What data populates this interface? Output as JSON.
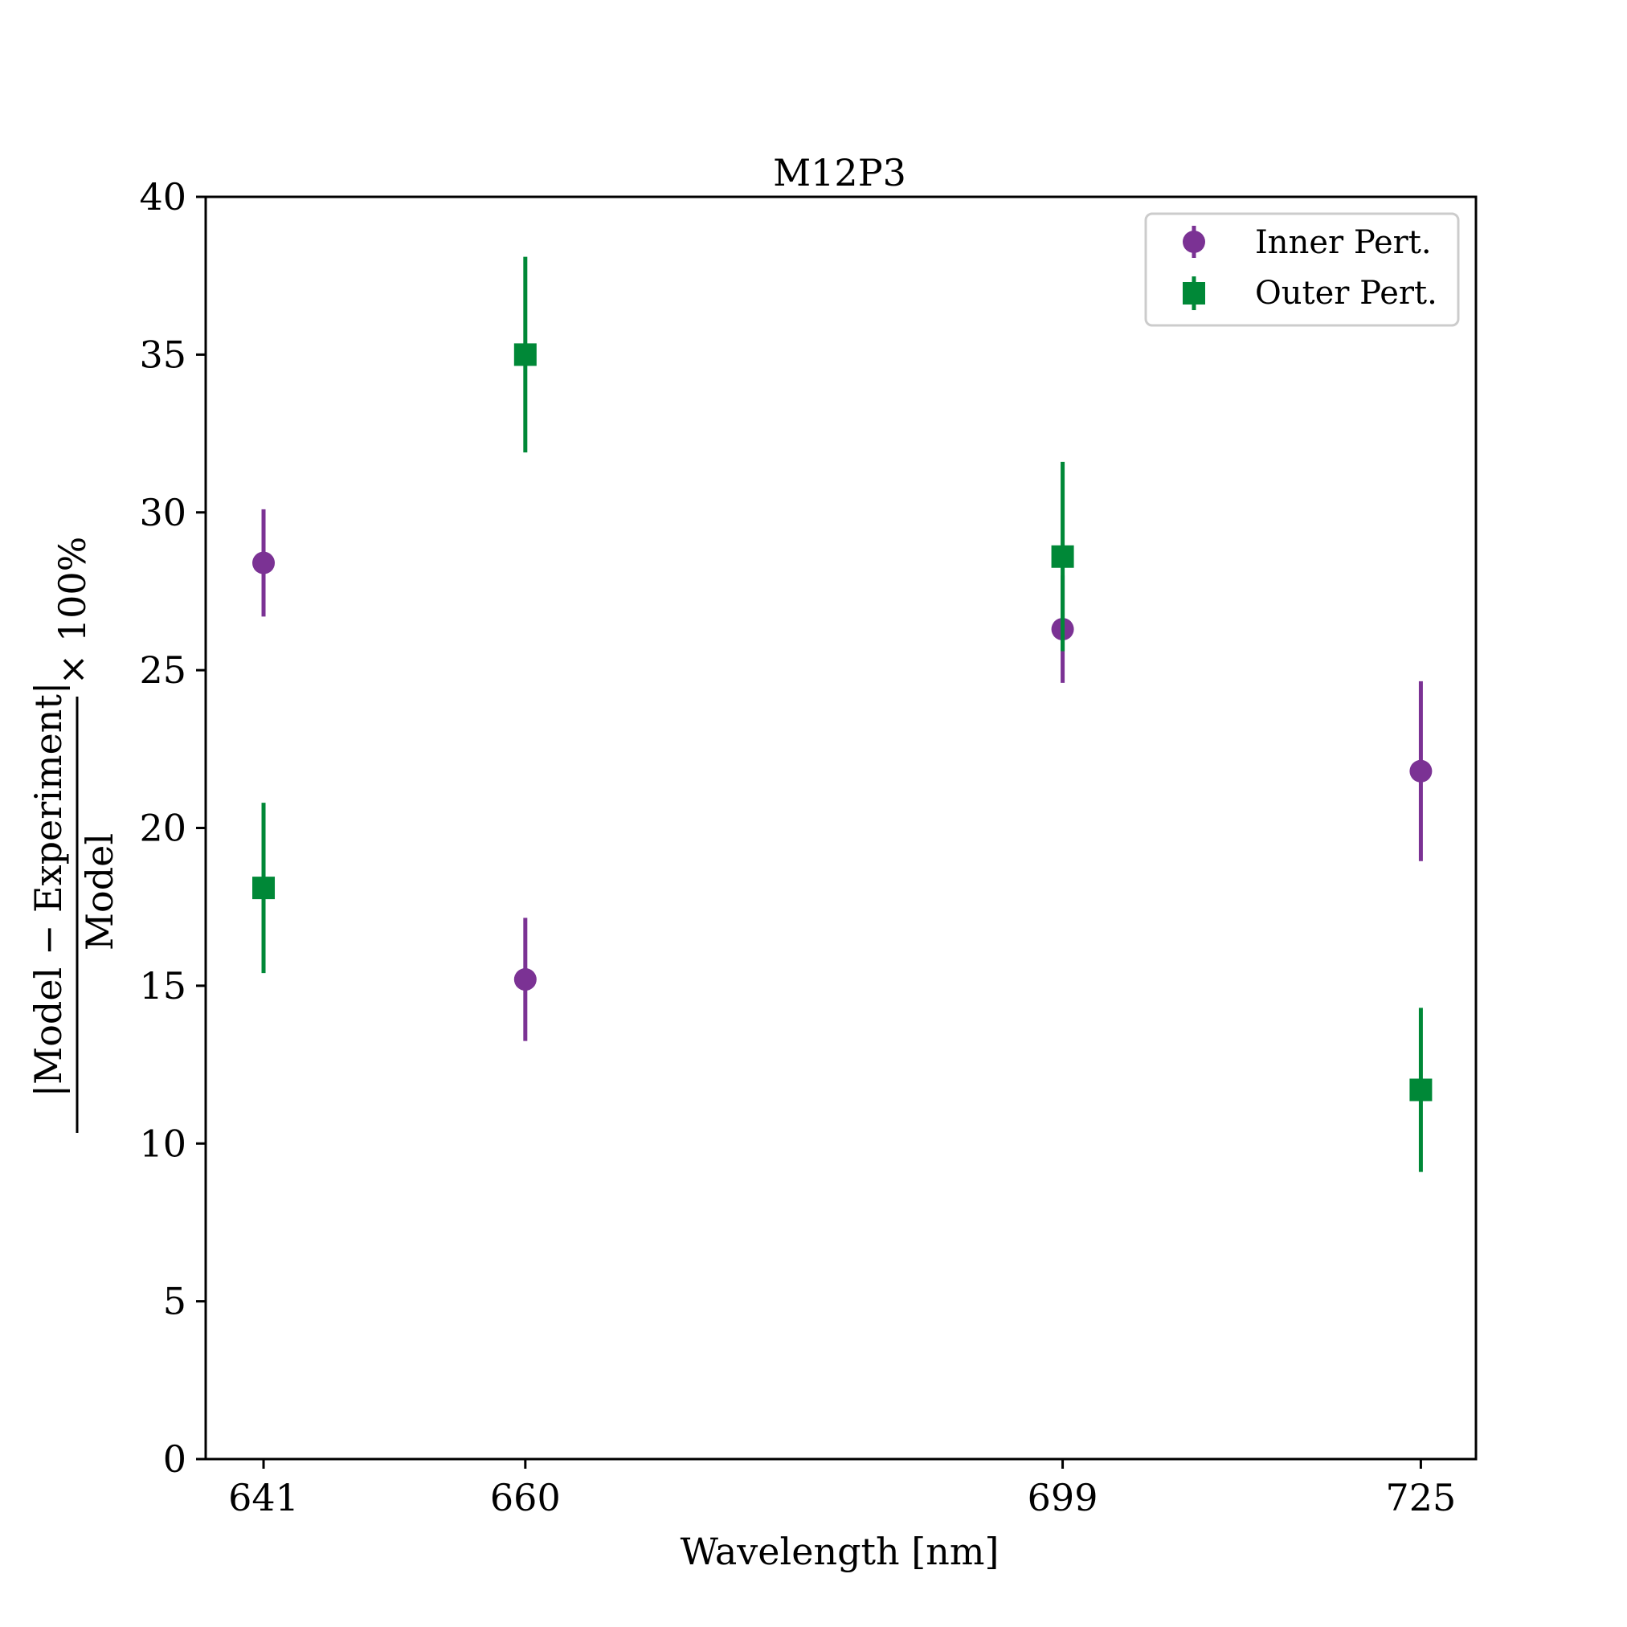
{
  "chart_data": {
    "type": "scatter",
    "title": "M12P3",
    "xlabel": "Wavelength [nm]",
    "ylabel": {
      "numerator": "|Model − Experiment|",
      "denominator": "Model",
      "suffix": "× 100%"
    },
    "categories": [
      "641",
      "660",
      "699",
      "725"
    ],
    "x": [
      641,
      660,
      699,
      725
    ],
    "xlim": [
      636.8,
      729
    ],
    "ylim": [
      0,
      40
    ],
    "yticks": [
      "0",
      "5",
      "10",
      "15",
      "20",
      "25",
      "30",
      "35",
      "40"
    ],
    "series": [
      {
        "name": "Inner Pert.",
        "marker": "circle",
        "color": "#7b3294",
        "values": [
          28.4,
          15.2,
          26.3,
          21.8
        ],
        "errors": [
          1.7,
          1.95,
          1.7,
          2.85
        ]
      },
      {
        "name": "Outer Pert.",
        "marker": "square",
        "color": "#008837",
        "values": [
          18.1,
          35.0,
          28.6,
          11.7
        ],
        "errors": [
          2.7,
          3.1,
          3.0,
          2.6
        ]
      }
    ],
    "legend": "top-right",
    "grid": false
  }
}
